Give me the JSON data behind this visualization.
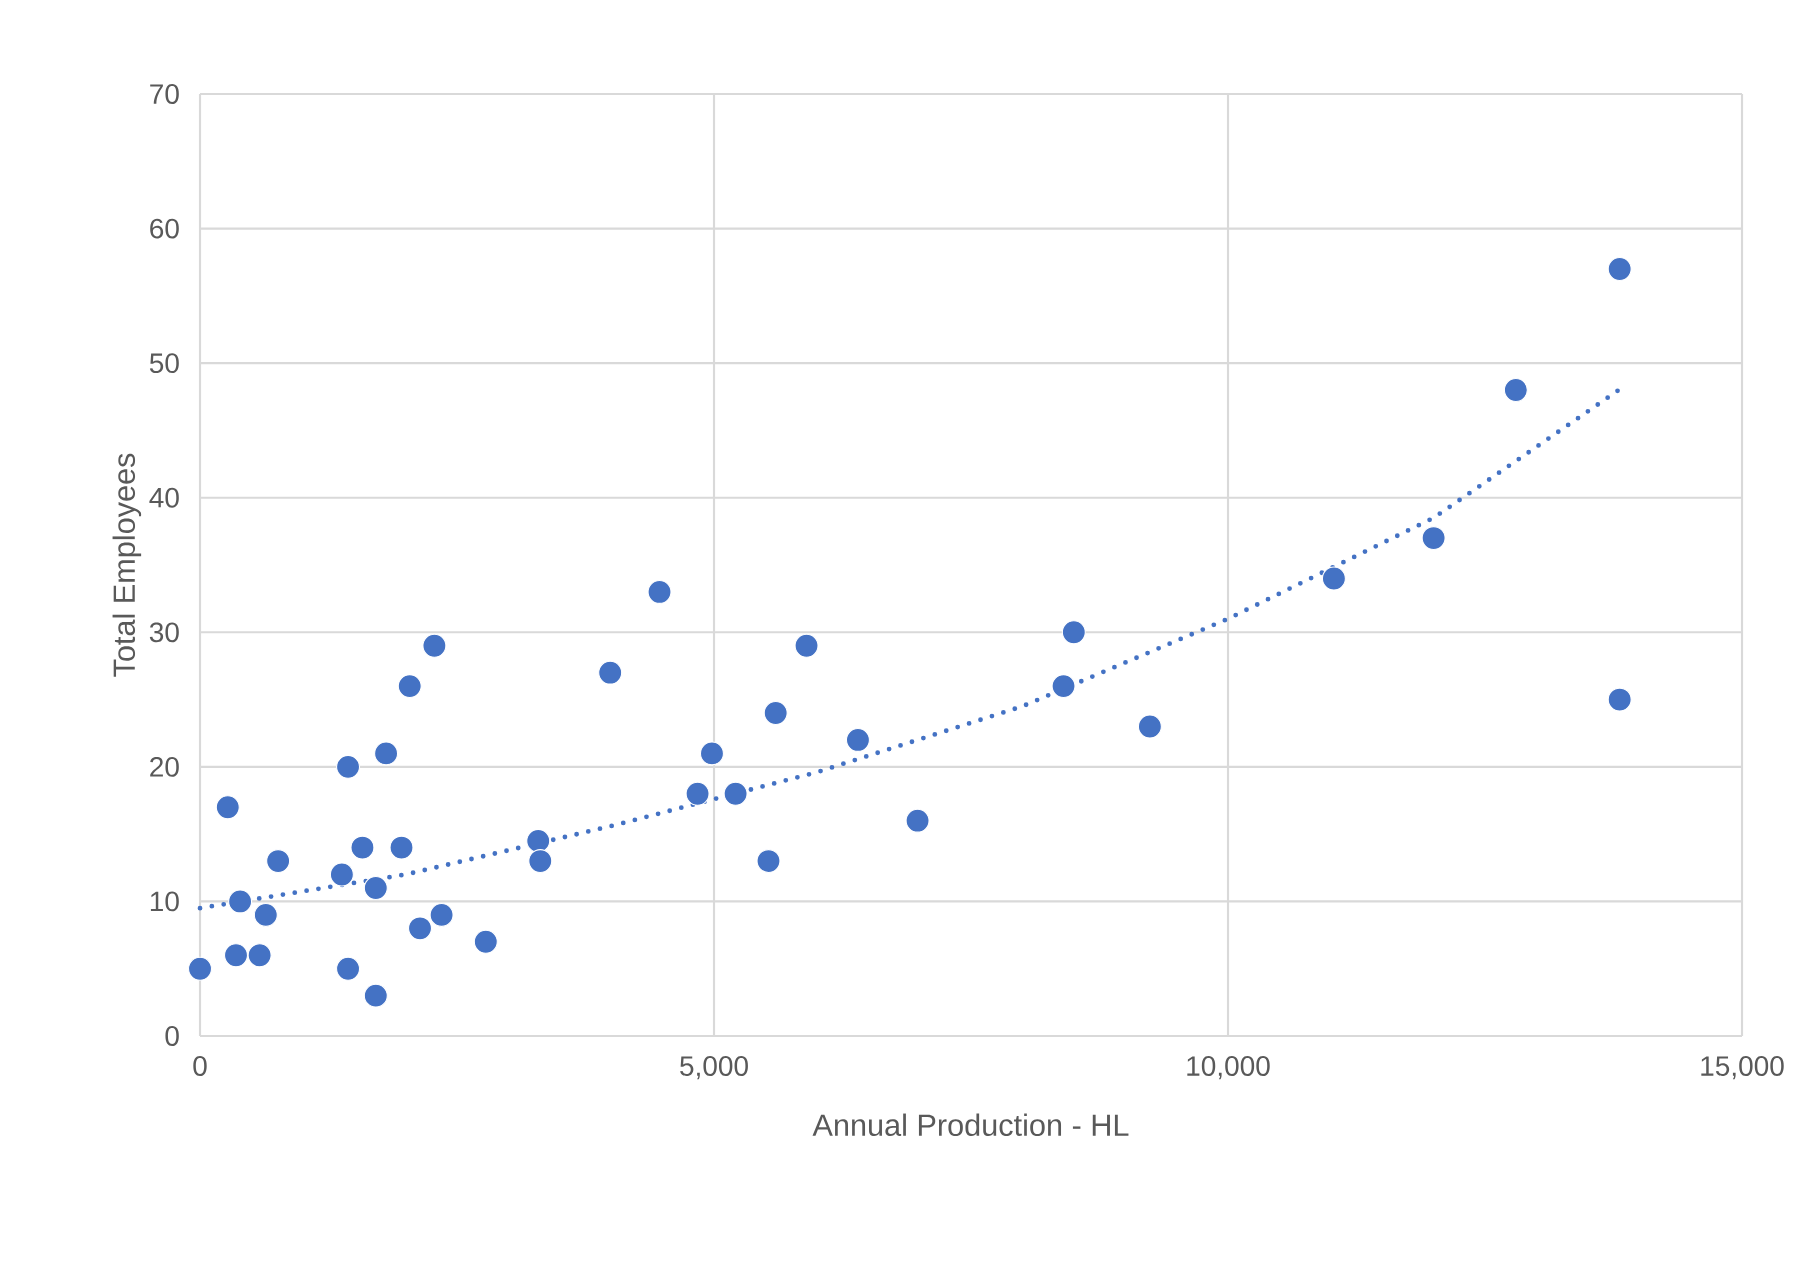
{
  "chart_data": {
    "type": "scatter",
    "xlabel": "Annual Production - HL",
    "ylabel": "Total Employees",
    "xlim": [
      0,
      15000
    ],
    "ylim": [
      0,
      70
    ],
    "xticks": [
      0,
      {
        "value": 5000,
        "label": "5,000"
      },
      {
        "value": 10000,
        "label": "10,000"
      },
      {
        "value": 15000,
        "label": "15,000"
      }
    ],
    "yticks": [
      0,
      10,
      20,
      30,
      40,
      50,
      60,
      70
    ],
    "grid": true,
    "marker": "circle",
    "series": [
      {
        "color": "#4472c4",
        "x": [
          0,
          270,
          350,
          390,
          580,
          640,
          760,
          1380,
          1440,
          1440,
          1580,
          1710,
          1710,
          1810,
          1960,
          2040,
          2140,
          2280,
          2350,
          2780,
          3290,
          3310,
          3990,
          4470,
          4840,
          4980,
          5210,
          5530,
          5600,
          5900,
          6400,
          6980,
          8400,
          8500,
          9240,
          11030,
          12000,
          12800,
          13810,
          13810
        ],
        "values": [
          5,
          17,
          6,
          10,
          6,
          9,
          13,
          12,
          20,
          5,
          14,
          11,
          3,
          21,
          14,
          26,
          8,
          29,
          9,
          7,
          14.5,
          13,
          27,
          33,
          18,
          21,
          18,
          13,
          24,
          29,
          22,
          16,
          26,
          30,
          23,
          34,
          37,
          48,
          57,
          25
        ]
      },
      {
        "type": "line",
        "color": "#4472c4",
        "line_style": "dotted",
        "marker": "none",
        "x": [
          0,
          2000,
          4000,
          6000,
          8000,
          10000,
          12000,
          13800
        ],
        "values": [
          9.5,
          12,
          15.6,
          19.6,
          24.5,
          31,
          38.5,
          48
        ]
      }
    ]
  }
}
